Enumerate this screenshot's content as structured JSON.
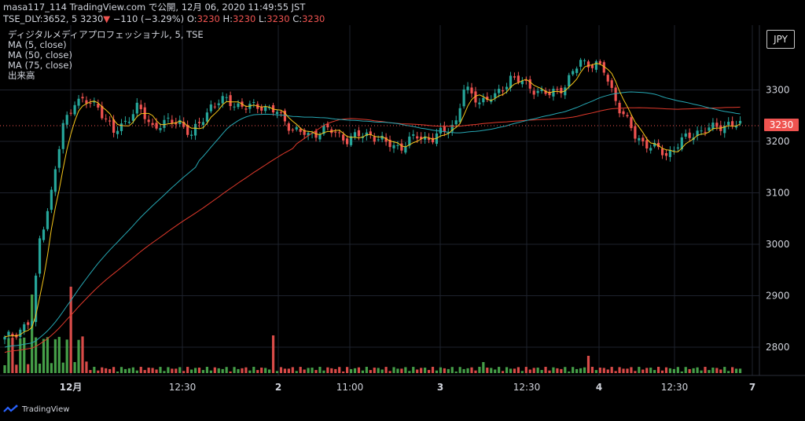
{
  "header": {
    "line1": "masa117_114 TradingView.com で公開, 12月 06, 2020 11:49:55 JST",
    "symbol_prefix": "TSE_DLY:3652, 5 3230",
    "change_arrow": "▼",
    "change_text": "−110 (−3.29%)",
    "o_label": "O:",
    "o_value": "3230",
    "h_label": "H:",
    "h_value": "3230",
    "l_label": "L:",
    "l_value": "3230",
    "c_label": "C:",
    "c_value": "3230"
  },
  "legend": {
    "title": "ディジタルメディアプロフェッショナル, 5, TSE",
    "ma5": "MA (5, close)",
    "ma50": "MA (50, close)",
    "ma75": "MA (75, close)",
    "volume": "出来高"
  },
  "axis": {
    "currency_button": "JPY",
    "price_labels": [
      "3300",
      "3200",
      "3100",
      "3000",
      "2900",
      "2800"
    ],
    "last_price": "3230",
    "time_labels": [
      "12月",
      "12:30",
      "2",
      "11:00",
      "3",
      "12:30",
      "4",
      "12:30",
      "7"
    ]
  },
  "colors": {
    "up": "#26a69a",
    "down": "#ef5350",
    "ma5": "#f5c518",
    "ma50": "#26a7b3",
    "ma75": "#e0392b",
    "vol_up": "#4caf50",
    "vol_down": "#ef5350"
  },
  "footer": {
    "brand": "TradingView"
  },
  "chart_data": {
    "type": "candlestick",
    "y_range": [
      2750,
      3390
    ],
    "series": [
      {
        "name": "MA (5, close)"
      },
      {
        "name": "MA (50, close)"
      },
      {
        "name": "MA (75, close)"
      },
      {
        "name": "出来高"
      }
    ],
    "last": 3230
  }
}
